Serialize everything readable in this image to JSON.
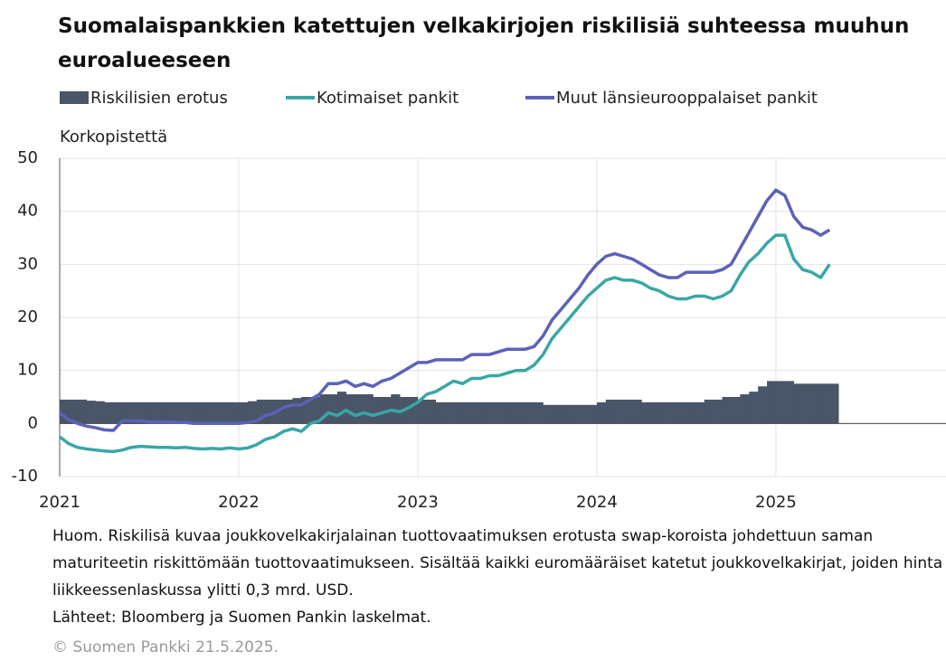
{
  "chart_data": {
    "type": "bar_line",
    "title": "Suomalaispankkien katettujen velkakirjojen riskilisiä suhteessa muuhun euroalueeseen",
    "ylabel": "Korkopistettä",
    "note": "Huom. Riskilisä kuvaa joukkovelkakirjalainan tuottovaatimuksen erotusta swap-koroista johdettuun saman maturiteetin riskittömään tuottovaatimukseen. Sisältää kaikki euromääräiset katetut joukkovelkakirjat, joiden hinta liikkeessenlaskussa ylitti 0,3 mrd. USD.",
    "source": "Lähteet: Bloomberg ja Suomen Pankin laskelmat.",
    "copyright": "© Suomen Pankki 21.5.2025.",
    "xlim": [
      2021,
      2025.95
    ],
    "xticks": [
      2021,
      2022,
      2023,
      2024,
      2025
    ],
    "ylim": [
      -10,
      50
    ],
    "yticks": [
      -10,
      0,
      10,
      20,
      30,
      40,
      50
    ],
    "grid": true,
    "x": [
      2021.0,
      2021.05,
      2021.1,
      2021.15,
      2021.2,
      2021.25,
      2021.3,
      2021.35,
      2021.4,
      2021.45,
      2021.5,
      2021.55,
      2021.6,
      2021.65,
      2021.7,
      2021.75,
      2021.8,
      2021.85,
      2021.9,
      2021.95,
      2022.0,
      2022.05,
      2022.1,
      2022.15,
      2022.2,
      2022.25,
      2022.3,
      2022.35,
      2022.4,
      2022.45,
      2022.5,
      2022.55,
      2022.6,
      2022.65,
      2022.7,
      2022.75,
      2022.8,
      2022.85,
      2022.9,
      2022.95,
      2023.0,
      2023.05,
      2023.1,
      2023.15,
      2023.2,
      2023.25,
      2023.3,
      2023.35,
      2023.4,
      2023.45,
      2023.5,
      2023.55,
      2023.6,
      2023.65,
      2023.7,
      2023.75,
      2023.8,
      2023.85,
      2023.9,
      2023.95,
      2024.0,
      2024.05,
      2024.1,
      2024.15,
      2024.2,
      2024.25,
      2024.3,
      2024.35,
      2024.4,
      2024.45,
      2024.5,
      2024.55,
      2024.6,
      2024.65,
      2024.7,
      2024.75,
      2024.8,
      2024.85,
      2024.9,
      2024.95,
      2025.0,
      2025.05,
      2025.1,
      2025.15,
      2025.2,
      2025.25,
      2025.3
    ],
    "series": [
      {
        "name": "Riskilisien erotus",
        "kind": "bar",
        "color": "#4a5568",
        "values": [
          4.5,
          4.5,
          4.5,
          4.3,
          4.2,
          4.0,
          4.0,
          4.0,
          4.0,
          4.0,
          4.0,
          4.0,
          4.0,
          4.0,
          4.0,
          4.0,
          4.0,
          4.0,
          4.0,
          4.0,
          4.0,
          4.2,
          4.5,
          4.5,
          4.5,
          4.5,
          4.8,
          5.0,
          5.0,
          5.5,
          5.5,
          6.0,
          5.5,
          5.5,
          5.5,
          5.0,
          5.0,
          5.5,
          5.0,
          5.0,
          4.5,
          4.5,
          4.0,
          4.0,
          4.0,
          4.0,
          4.0,
          4.0,
          4.0,
          4.0,
          4.0,
          4.0,
          4.0,
          4.0,
          3.5,
          3.5,
          3.5,
          3.5,
          3.5,
          3.5,
          4.0,
          4.5,
          4.5,
          4.5,
          4.5,
          4.0,
          4.0,
          4.0,
          4.0,
          4.0,
          4.0,
          4.0,
          4.5,
          4.5,
          5.0,
          5.0,
          5.5,
          6.0,
          7.0,
          8.0,
          8.0,
          8.0,
          7.5,
          7.5,
          7.5,
          7.5,
          7.5
        ]
      },
      {
        "name": "Kotimaiset pankit",
        "kind": "line",
        "color": "#3aa6a6",
        "values": [
          -2.5,
          -3.8,
          -4.5,
          -4.8,
          -5.0,
          -5.2,
          -5.3,
          -5.0,
          -4.5,
          -4.3,
          -4.4,
          -4.5,
          -4.5,
          -4.6,
          -4.5,
          -4.7,
          -4.8,
          -4.7,
          -4.8,
          -4.6,
          -4.8,
          -4.6,
          -4.0,
          -3.0,
          -2.5,
          -1.5,
          -1.0,
          -1.5,
          0.0,
          0.5,
          2.0,
          1.5,
          2.5,
          1.5,
          2.0,
          1.5,
          2.0,
          2.5,
          2.2,
          3.0,
          4.0,
          5.5,
          6.0,
          7.0,
          8.0,
          7.5,
          8.5,
          8.5,
          9.0,
          9.0,
          9.5,
          10.0,
          10.0,
          11.0,
          13.0,
          16.0,
          18.0,
          20.0,
          22.0,
          24.0,
          25.5,
          27.0,
          27.5,
          27.0,
          27.0,
          26.5,
          25.5,
          25.0,
          24.0,
          23.5,
          23.5,
          24.0,
          24.0,
          23.5,
          24.0,
          25.0,
          28.0,
          30.5,
          32.0,
          34.0,
          35.5,
          35.5,
          31.0,
          29.0,
          28.5,
          27.5,
          30.0
        ]
      },
      {
        "name": "Muut länsieurooppalaiset pankit",
        "kind": "line",
        "color": "#5b62b8",
        "values": [
          2.0,
          0.7,
          0.0,
          -0.5,
          -0.8,
          -1.2,
          -1.3,
          0.5,
          0.5,
          0.5,
          0.3,
          0.3,
          0.3,
          0.2,
          0.2,
          0.0,
          0.0,
          0.0,
          0.0,
          0.0,
          0.0,
          0.2,
          0.5,
          1.5,
          2.0,
          3.0,
          3.5,
          3.5,
          4.5,
          5.5,
          7.5,
          7.5,
          8.0,
          7.0,
          7.5,
          7.0,
          8.0,
          8.5,
          9.5,
          10.5,
          11.5,
          11.5,
          12.0,
          12.0,
          12.0,
          12.0,
          13.0,
          13.0,
          13.0,
          13.5,
          14.0,
          14.0,
          14.0,
          14.5,
          16.5,
          19.5,
          21.5,
          23.5,
          25.5,
          28.0,
          30.0,
          31.5,
          32.0,
          31.5,
          31.0,
          30.0,
          29.0,
          28.0,
          27.5,
          27.5,
          28.5,
          28.5,
          28.5,
          28.5,
          29.0,
          30.0,
          33.0,
          36.0,
          39.0,
          42.0,
          44.0,
          43.0,
          39.0,
          37.0,
          36.5,
          35.5,
          36.5
        ]
      }
    ]
  }
}
